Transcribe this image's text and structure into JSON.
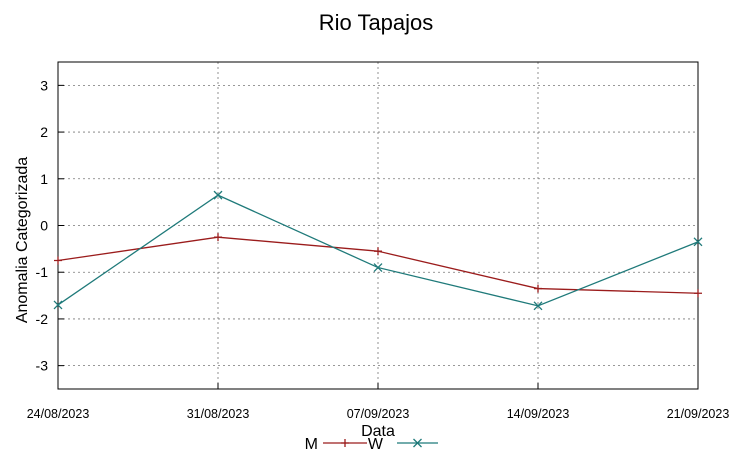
{
  "chart_data": {
    "type": "line",
    "title": "Rio Tapajos",
    "xlabel": "Data",
    "ylabel": "Anomalia Categorizada",
    "categories": [
      "24/08/2023",
      "31/08/2023",
      "07/09/2023",
      "14/09/2023",
      "21/09/2023"
    ],
    "yticks": [
      "3",
      "2",
      "1",
      "0",
      "-1",
      "-2",
      "-3"
    ],
    "ylim": [
      -3.5,
      3.5
    ],
    "grid": true,
    "legend_position": "bottom-center",
    "series": [
      {
        "name": "M",
        "color": "#9b1c1c",
        "marker": "+",
        "values": [
          -0.75,
          -0.25,
          -0.55,
          -1.35,
          -1.45
        ]
      },
      {
        "name": "W",
        "color": "#1f7a7a",
        "marker": "x",
        "values": [
          -1.7,
          0.65,
          -0.9,
          -1.72,
          -0.35
        ]
      }
    ]
  }
}
